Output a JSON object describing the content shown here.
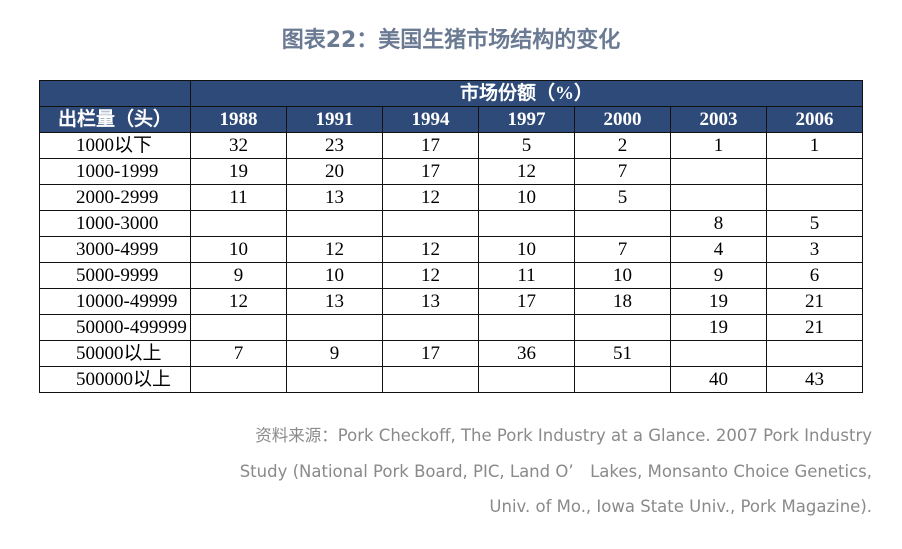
{
  "title": "图表22：美国生猪市场结构的变化",
  "table": {
    "row_header": "出栏量（头）",
    "group_header": "市场份额（%）",
    "columns": [
      "1988",
      "1991",
      "1994",
      "1997",
      "2000",
      "2003",
      "2006"
    ],
    "rows": [
      {
        "label": "1000以下",
        "cells": [
          32,
          23,
          17,
          5,
          2,
          1,
          1
        ]
      },
      {
        "label": "1000-1999",
        "cells": [
          19,
          20,
          17,
          12,
          7,
          null,
          null
        ]
      },
      {
        "label": "2000-2999",
        "cells": [
          11,
          13,
          12,
          10,
          5,
          null,
          null
        ]
      },
      {
        "label": "1000-3000",
        "cells": [
          null,
          null,
          null,
          null,
          null,
          8,
          5
        ]
      },
      {
        "label": "3000-4999",
        "cells": [
          10,
          12,
          12,
          10,
          7,
          4,
          3
        ]
      },
      {
        "label": "5000-9999",
        "cells": [
          9,
          10,
          12,
          11,
          10,
          9,
          6
        ]
      },
      {
        "label": "10000-49999",
        "cells": [
          12,
          13,
          13,
          17,
          18,
          19,
          21
        ]
      },
      {
        "label": "50000-499999",
        "cells": [
          null,
          null,
          null,
          null,
          null,
          19,
          21
        ]
      },
      {
        "label": "50000以上",
        "cells": [
          7,
          9,
          17,
          36,
          51,
          null,
          null
        ]
      },
      {
        "label": "500000以上",
        "cells": [
          null,
          null,
          null,
          null,
          null,
          40,
          43
        ]
      }
    ]
  },
  "source": [
    "资料来源：Pork Checkoff, The Pork Industry at a Glance. 2007 Pork Industry",
    "Study (National Pork Board, PIC, Land O’　Lakes, Monsanto Choice Genetics,",
    "Univ. of Mo., Iowa State Univ., Pork Magazine)."
  ]
}
